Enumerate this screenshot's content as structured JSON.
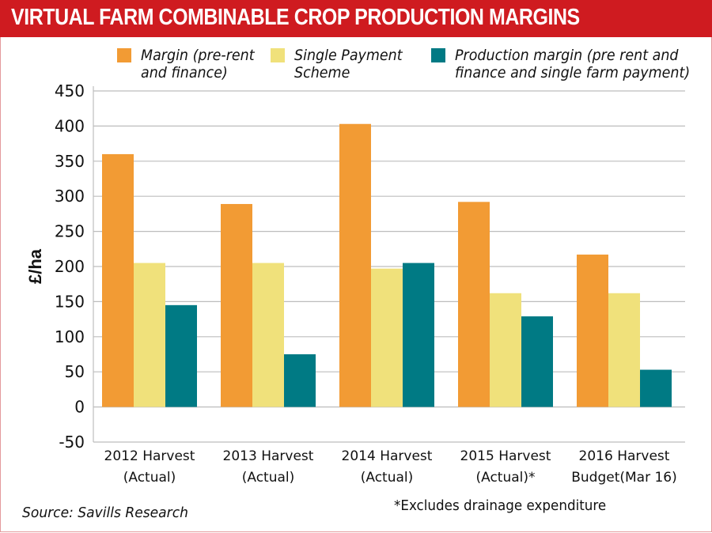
{
  "chart_data": {
    "type": "bar",
    "title": "VIRTUAL FARM COMBINABLE CROP PRODUCTION MARGINS",
    "xlabel": "",
    "ylabel": "£/ha",
    "ylim": [
      -50,
      450
    ],
    "yticks": [
      450,
      400,
      350,
      300,
      250,
      200,
      150,
      100,
      50,
      0,
      -50
    ],
    "grid": true,
    "legend_position": "top",
    "categories": [
      [
        "2012 Harvest",
        "(Actual)"
      ],
      [
        "2013 Harvest",
        "(Actual)"
      ],
      [
        "2014 Harvest",
        "(Actual)"
      ],
      [
        "2015 Harvest",
        "(Actual)*"
      ],
      [
        "2016 Harvest",
        "Budget(Mar 16)"
      ]
    ],
    "series": [
      {
        "name": "Margin (pre-rent and finance)",
        "legend_lines": [
          "Margin (pre-rent",
          "and finance)"
        ],
        "color": "#f29b34",
        "values": [
          360,
          289,
          403,
          292,
          217
        ]
      },
      {
        "name": "Single Payment Scheme",
        "legend_lines": [
          "Single Payment",
          "Scheme"
        ],
        "color": "#f0e17b",
        "values": [
          205,
          205,
          197,
          162,
          162
        ]
      },
      {
        "name": "Production margin (pre rent and finance and single farm payment)",
        "legend_lines": [
          "Production margin (pre rent and",
          "finance and single farm payment)"
        ],
        "color": "#007a84",
        "values": [
          145,
          75,
          205,
          129,
          53
        ]
      }
    ],
    "source": "Source: Savills Research",
    "footnote": "*Excludes drainage expenditure"
  },
  "theme": {
    "title_bar": "#cf1b20",
    "grid": "#bdbdbd",
    "border": "#e49a9c"
  }
}
